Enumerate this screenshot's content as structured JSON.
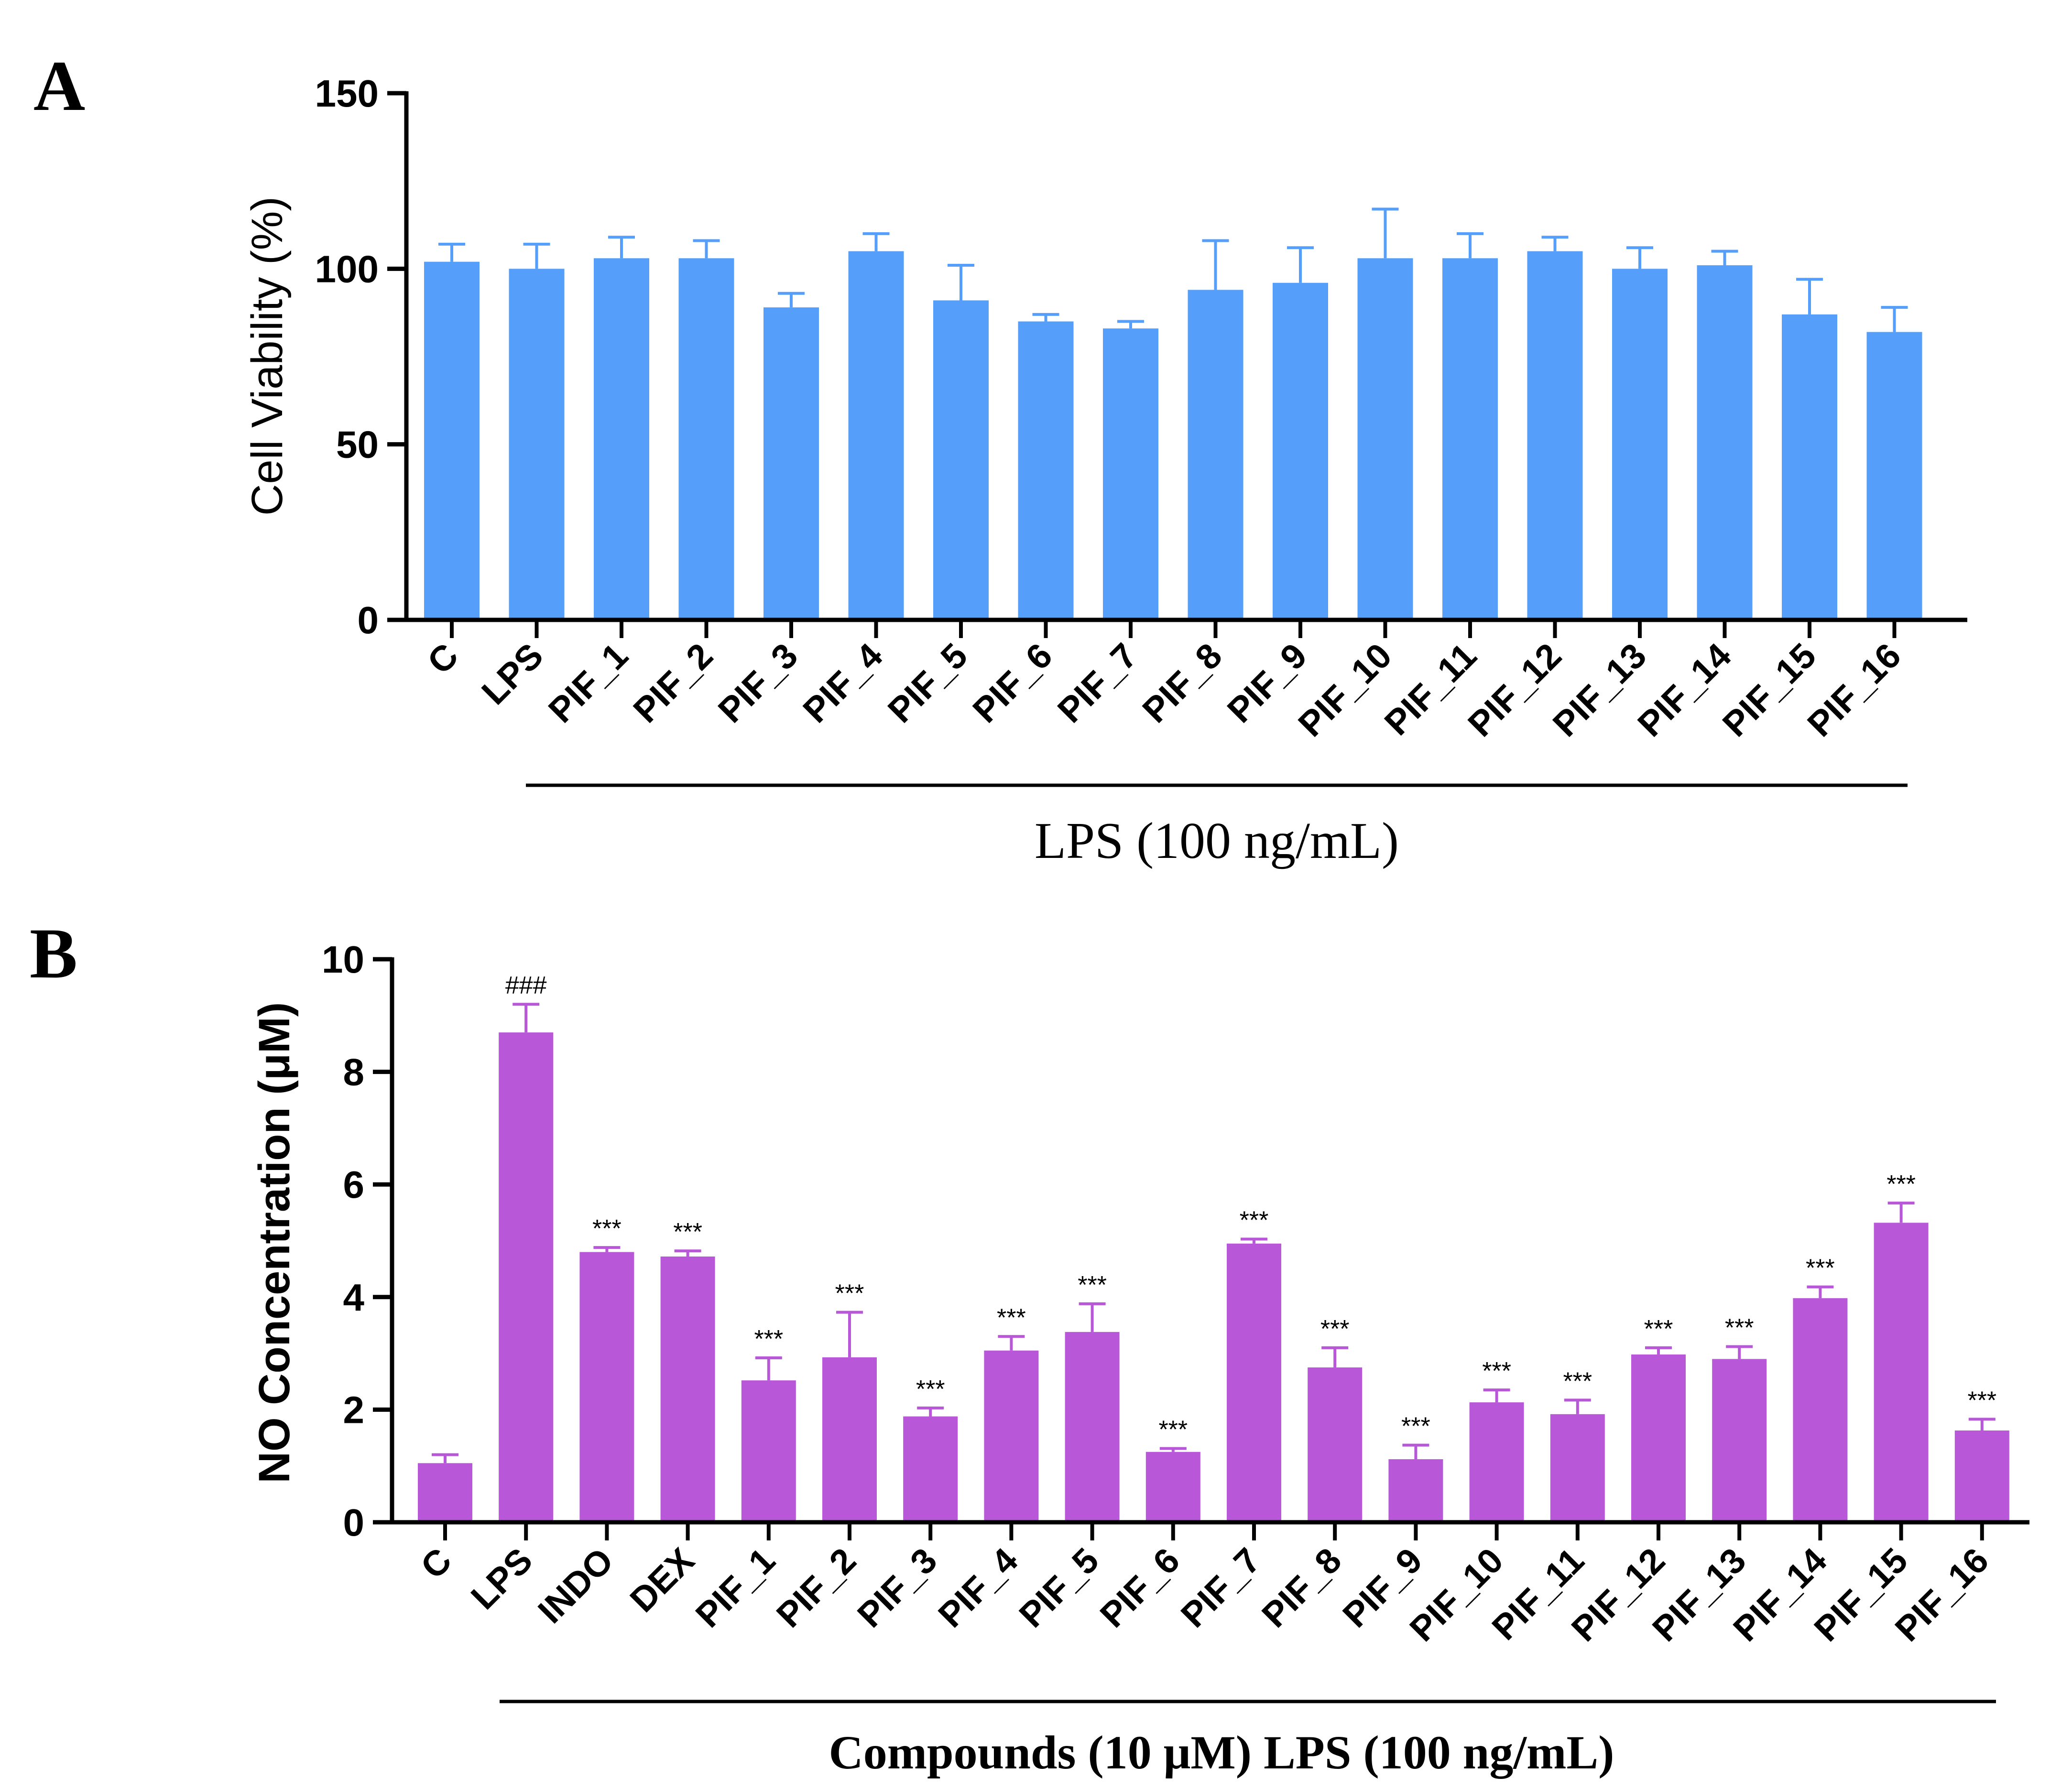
{
  "chart_data": [
    {
      "panel_label": "A",
      "type": "bar",
      "ylabel": "Cell  Viability (%)",
      "ylim": [
        0,
        150
      ],
      "yticks": [
        0,
        50,
        100,
        150
      ],
      "group_label": "LPS  (100 ng/mL)",
      "bar_color": "#559ffa",
      "categories": [
        "C",
        "LPS",
        "PIF_1",
        "PIF_2",
        "PIF_3",
        "PIF_4",
        "PIF_5",
        "PIF_6",
        "PIF_7",
        "PIF_8",
        "PIF_9",
        "PIF_10",
        "PIF_11",
        "PIF_12",
        "PIF_13",
        "PIF_14",
        "PIF_15",
        "PIF_16"
      ],
      "values": [
        102,
        100,
        103,
        103,
        89,
        105,
        91,
        85,
        83,
        94,
        96,
        103,
        103,
        105,
        100,
        101,
        87,
        82
      ],
      "errors": [
        5,
        7,
        6,
        5,
        4,
        5,
        10,
        2,
        2,
        14,
        10,
        14,
        7,
        4,
        6,
        4,
        10,
        7
      ]
    },
    {
      "panel_label": "B",
      "type": "bar",
      "ylabel": "NO Concentration (μM)",
      "ylim": [
        0,
        10
      ],
      "yticks": [
        0,
        2,
        4,
        6,
        8,
        10
      ],
      "group_label": "Compounds (10 μM)  LPS (100 ng/mL)",
      "bar_color": "#b957d9",
      "categories": [
        "C",
        "LPS",
        "INDO",
        "DEX",
        "PIF_1",
        "PIF_2",
        "PIF_3",
        "PIF_4",
        "PIF_5",
        "PIF_6",
        "PIF_7",
        "PIF_8",
        "PIF_9",
        "PIF_10",
        "PIF_11",
        "PIF_12",
        "PIF_13",
        "PIF_14",
        "PIF_15",
        "PIF_16"
      ],
      "values": [
        1.05,
        8.7,
        4.8,
        4.72,
        2.52,
        2.93,
        1.88,
        3.05,
        3.38,
        1.25,
        4.95,
        2.75,
        1.12,
        2.13,
        1.92,
        2.98,
        2.9,
        3.98,
        5.32,
        1.63
      ],
      "errors": [
        0.15,
        0.5,
        0.08,
        0.1,
        0.4,
        0.8,
        0.15,
        0.25,
        0.5,
        0.06,
        0.08,
        0.35,
        0.25,
        0.22,
        0.25,
        0.12,
        0.22,
        0.2,
        0.35,
        0.2
      ],
      "significance": [
        "",
        "###",
        "***",
        "***",
        "***",
        "***",
        "***",
        "***",
        "***",
        "***",
        "***",
        "***",
        "***",
        "***",
        "***",
        "***",
        "***",
        "***",
        "***",
        "***"
      ]
    }
  ]
}
